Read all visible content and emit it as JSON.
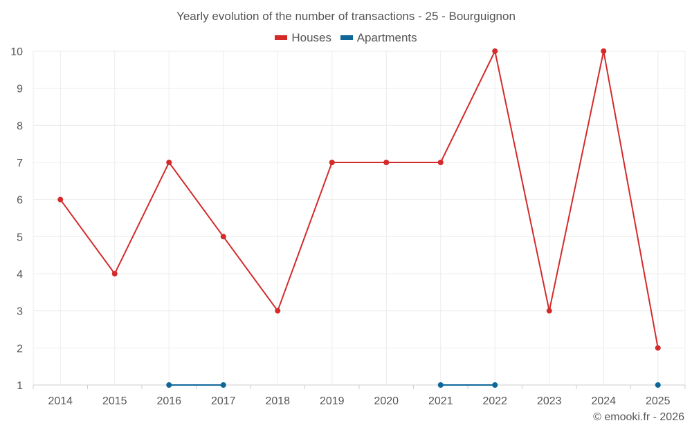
{
  "chart_data": {
    "type": "line",
    "title": "Yearly evolution of the number of transactions - 25 - Bourguignon",
    "x": [
      "2014",
      "2015",
      "2016",
      "2017",
      "2018",
      "2019",
      "2020",
      "2021",
      "2022",
      "2023",
      "2024",
      "2025"
    ],
    "series": [
      {
        "name": "Houses",
        "color": "#d42a2a",
        "values": [
          6,
          4,
          7,
          5,
          3,
          7,
          7,
          7,
          10,
          3,
          10,
          2
        ]
      },
      {
        "name": "Apartments",
        "color": "#0e6699",
        "values": [
          null,
          null,
          1,
          1,
          null,
          null,
          null,
          1,
          1,
          null,
          null,
          1
        ]
      }
    ],
    "ylim": [
      1,
      10
    ],
    "yticks": [
      "1",
      "2",
      "3",
      "4",
      "5",
      "6",
      "7",
      "8",
      "9",
      "10"
    ],
    "grid": true,
    "legend": "top-center"
  },
  "credit": "© emooki.fr - 2026"
}
